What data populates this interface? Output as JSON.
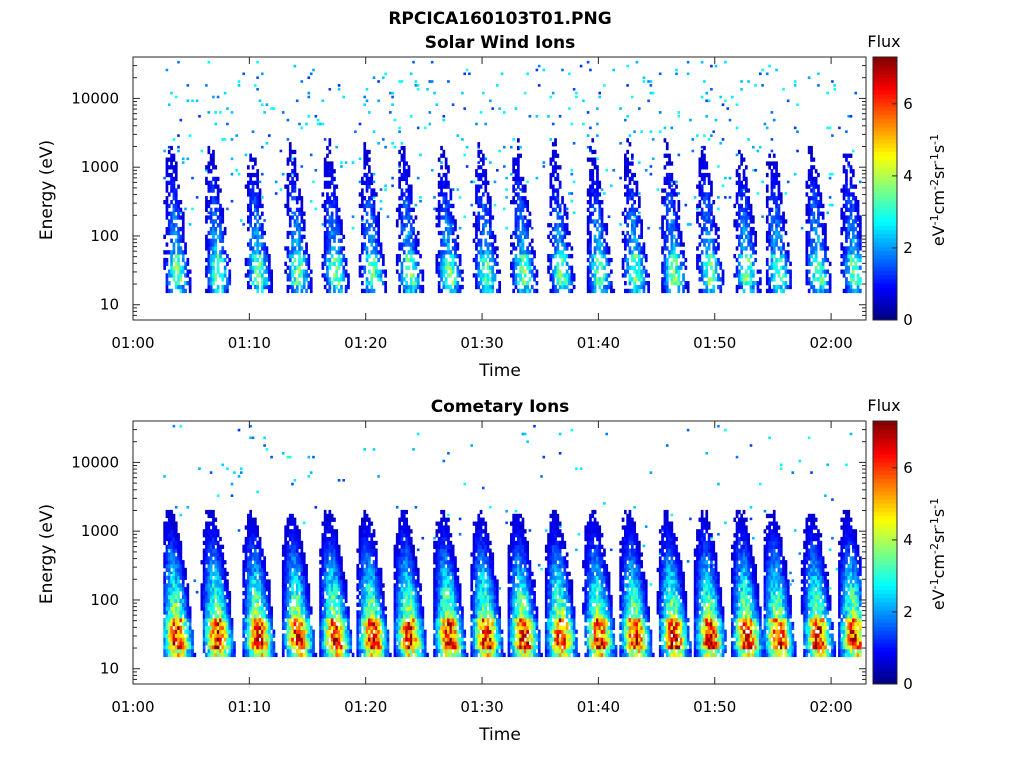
{
  "figure": {
    "title": "RPCICA160103T01.PNG"
  },
  "chart_data": [
    {
      "type": "heatmap",
      "title": "Solar Wind Ions",
      "xlabel": "Time",
      "ylabel": "Energy (eV)",
      "y_scale": "log",
      "xlim": [
        "01:00",
        "02:03"
      ],
      "ylim": [
        6,
        40000
      ],
      "x_ticks": [
        "01:00",
        "01:10",
        "01:20",
        "01:30",
        "01:40",
        "01:50",
        "02:00"
      ],
      "y_ticks": [
        10,
        100,
        1000,
        10000
      ],
      "colorbar": {
        "label": "Flux",
        "unit": "eV-1cm-2sr-1s-1",
        "range": [
          0,
          7.3
        ],
        "ticks": [
          0,
          2,
          4,
          6
        ],
        "colormap": "jet"
      },
      "bursts_time_min": [
        3.8,
        7.3,
        10.8,
        14.2,
        17.4,
        20.6,
        23.8,
        27.2,
        30.4,
        33.6,
        36.8,
        40.1,
        43.2,
        46.5,
        49.6,
        52.8,
        55.5,
        58.9,
        62.0
      ],
      "peak_flux": 3.5,
      "description_levels": {
        "low_energy_band_eV": [
          18,
          45
        ],
        "sparse_high_energy_counts": true
      }
    },
    {
      "type": "heatmap",
      "title": "Cometary Ions",
      "xlabel": "Time",
      "ylabel": "Energy (eV)",
      "y_scale": "log",
      "xlim": [
        "01:00",
        "02:03"
      ],
      "ylim": [
        6,
        40000
      ],
      "x_ticks": [
        "01:00",
        "01:10",
        "01:20",
        "01:30",
        "01:40",
        "01:50",
        "02:00"
      ],
      "y_ticks": [
        10,
        100,
        1000,
        10000
      ],
      "colorbar": {
        "label": "Flux",
        "unit": "eV-1cm-2sr-1s-1",
        "range": [
          0,
          7.3
        ],
        "ticks": [
          0,
          2,
          4,
          6
        ],
        "colormap": "jet"
      },
      "bursts_time_min": [
        3.8,
        7.3,
        10.8,
        14.2,
        17.4,
        20.6,
        23.8,
        27.2,
        30.4,
        33.6,
        36.8,
        40.1,
        43.2,
        46.5,
        49.6,
        52.8,
        55.5,
        58.9,
        62.0
      ],
      "peak_flux": 6.5,
      "description_levels": {
        "low_energy_band_eV": [
          18,
          45
        ],
        "sparse_high_energy_counts": true
      }
    }
  ]
}
